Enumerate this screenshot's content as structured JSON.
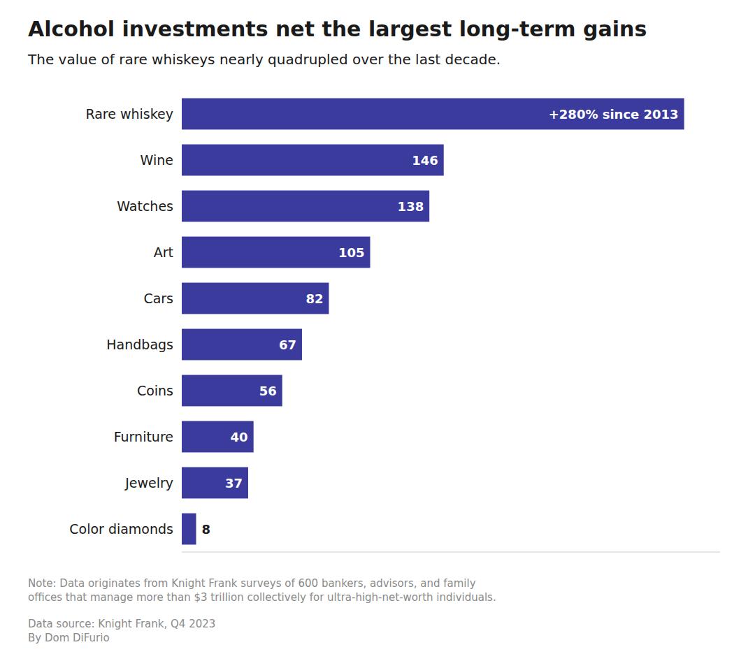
{
  "chart_data": {
    "type": "bar",
    "orientation": "horizontal",
    "title": "Alcohol investments net the largest long-term gains",
    "subtitle": "The value of rare whiskeys nearly quadrupled over the last decade.",
    "note": "Note: Data originates from Knight Frank surveys of 600 bankers, advisors, and family\noffices that manage more than $3 trillion collectively for ultra-high-net-worth individuals.",
    "source": "Data source: Knight Frank, Q4 2023\nBy Dom DiFurio",
    "categories": [
      "Rare whiskey",
      "Wine",
      "Watches",
      "Art",
      "Cars",
      "Handbags",
      "Coins",
      "Furniture",
      "Jewelry",
      "Color diamonds"
    ],
    "values": [
      280,
      146,
      138,
      105,
      82,
      67,
      56,
      40,
      37,
      8
    ],
    "value_labels": [
      "+280% since 2013",
      "146",
      "138",
      "105",
      "82",
      "67",
      "56",
      "40",
      "37",
      "8"
    ],
    "color": "#3b3b9e",
    "xlim": [
      0,
      300
    ],
    "data_labels": true,
    "tick_labels": false,
    "grid": false
  }
}
